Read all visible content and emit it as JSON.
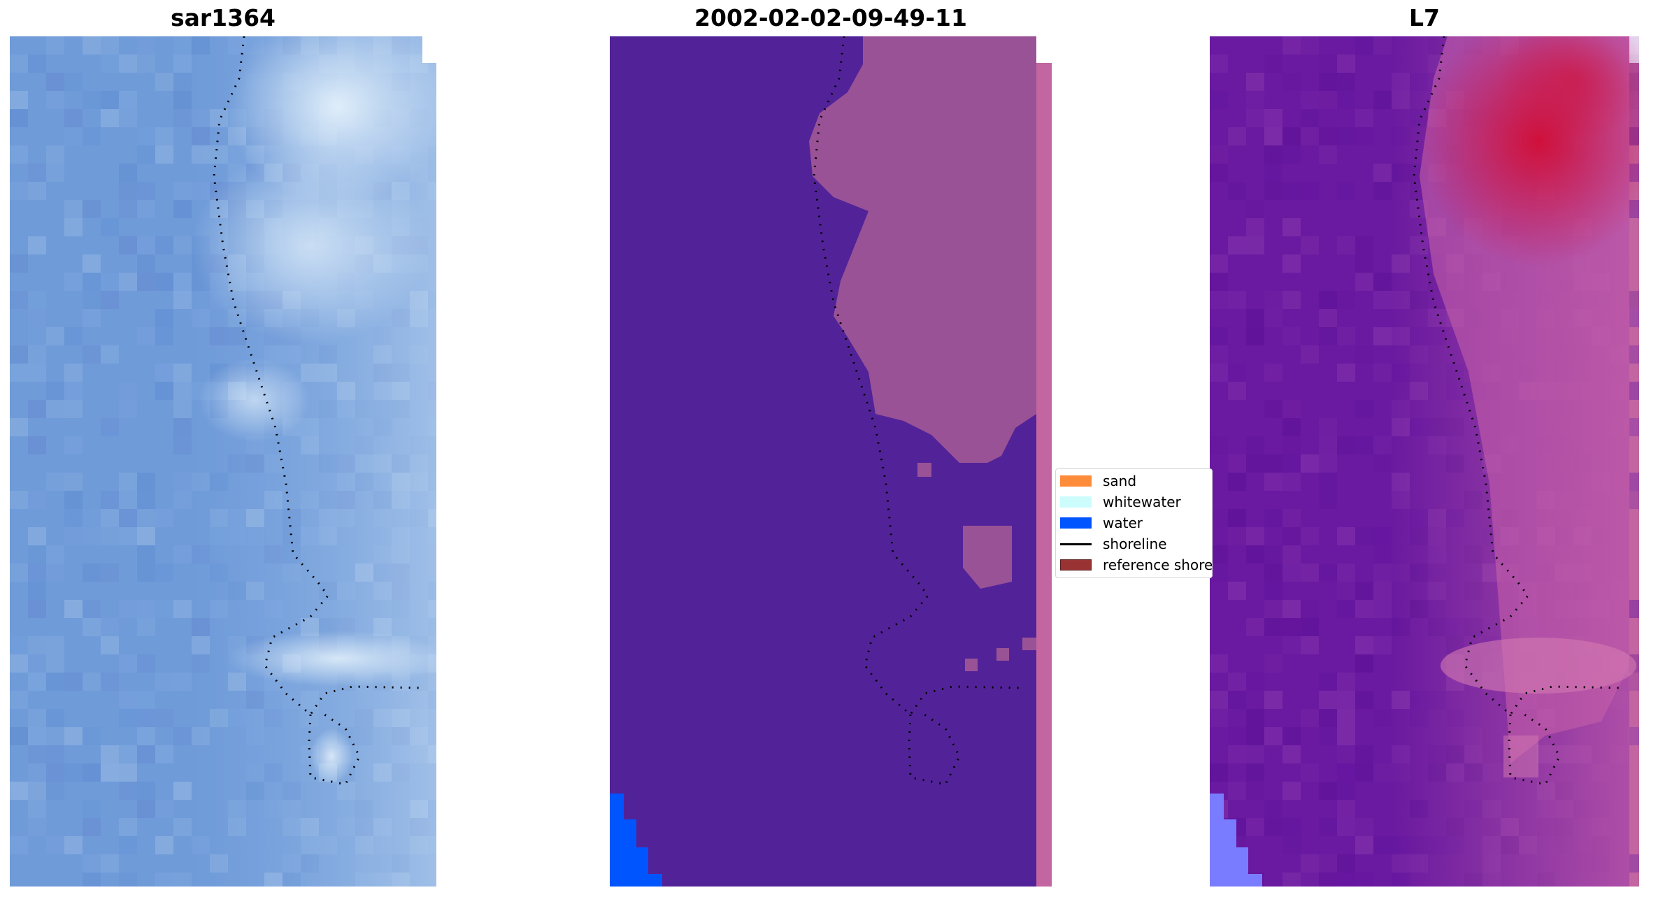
{
  "panels": [
    {
      "title": "sar1364"
    },
    {
      "title": "2002-02-02-09-49-11"
    },
    {
      "title": "L7"
    }
  ],
  "legend": {
    "items": [
      {
        "label": "sand",
        "color": "#ff8c3a",
        "kind": "patch"
      },
      {
        "label": "whitewater",
        "color": "#ccfcfc",
        "kind": "patch"
      },
      {
        "label": "water",
        "color": "#0055ff",
        "kind": "patch"
      },
      {
        "label": "shoreline",
        "color": "#000000",
        "kind": "line"
      },
      {
        "label": "reference shoreline",
        "color": "#993333",
        "kind": "patch"
      }
    ]
  },
  "colors": {
    "sar_base": "#6f9bd9",
    "sar_highlight": "#d7e8f7",
    "classified_water": "#522398",
    "classified_land": "#b86aa8",
    "classified_blue_water": "#0055ff",
    "l7_water": "#6a1aa0",
    "l7_land": "#c45fa8",
    "l7_highlight": "#d0103a",
    "shoreline": "#000000"
  }
}
